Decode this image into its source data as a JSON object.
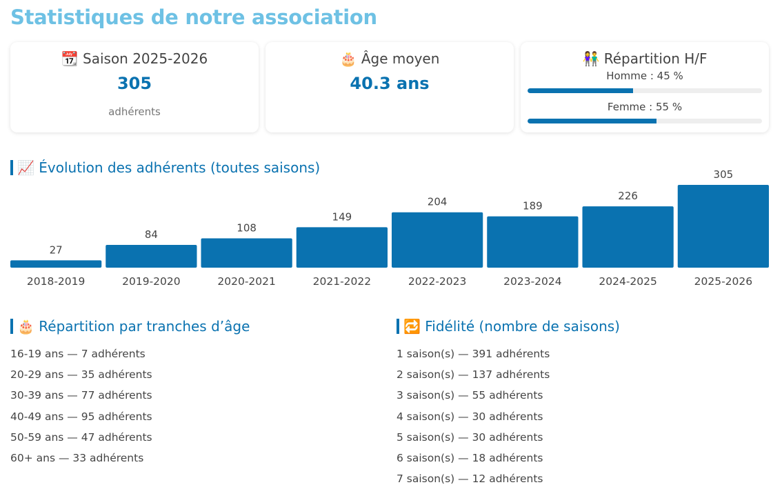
{
  "page": {
    "title": "Statistiques de notre association"
  },
  "cards": {
    "season": {
      "icon": "calendar-icon",
      "title": "📆 Saison 2025-2026",
      "value": "305",
      "sub": "adhérents"
    },
    "age": {
      "icon": "birthday-cake-icon",
      "title": "🎂 Âge moyen",
      "value": "40.3 ans"
    },
    "gender": {
      "icon": "couple-icon",
      "title": "👫 Répartition H/F",
      "items": [
        {
          "label": "Homme : 45 %",
          "percent": 45
        },
        {
          "label": "Femme : 55 %",
          "percent": 55
        }
      ]
    }
  },
  "evolution": {
    "title": "📈 Évolution des adhérents (toutes saisons)",
    "icon": "chart-increasing-icon"
  },
  "chart_data": {
    "type": "bar",
    "categories": [
      "2018-2019",
      "2019-2020",
      "2020-2021",
      "2021-2022",
      "2022-2023",
      "2023-2024",
      "2024-2025",
      "2025-2026"
    ],
    "values": [
      27,
      84,
      108,
      149,
      204,
      189,
      226,
      305
    ],
    "title": "📈 Évolution des adhérents (toutes saisons)",
    "ylim": [
      0,
      305
    ],
    "grid": false,
    "bar_color": "#0a72b0",
    "data_labels": true
  },
  "age_ranges": {
    "title": "🎂 Répartition par tranches d’âge",
    "icon": "birthday-cake-icon",
    "items": [
      "16-19 ans — 7 adhérents",
      "20-29 ans — 35 adhérents",
      "30-39 ans — 77 adhérents",
      "40-49 ans — 95 adhérents",
      "50-59 ans — 47 adhérents",
      "60+ ans — 33 adhérents"
    ]
  },
  "loyalty": {
    "title": "🔁 Fidélité (nombre de saisons)",
    "icon": "repeat-icon",
    "items": [
      "1 saison(s) — 391 adhérents",
      "2 saison(s) — 137 adhérents",
      "3 saison(s) — 55 adhérents",
      "4 saison(s) — 30 adhérents",
      "5 saison(s) — 30 adhérents",
      "6 saison(s) — 18 adhérents",
      "7 saison(s) — 12 adhérents"
    ]
  },
  "colors": {
    "accent": "#0a72b0",
    "title": "#6ec1e4",
    "track": "#eeeeee"
  }
}
